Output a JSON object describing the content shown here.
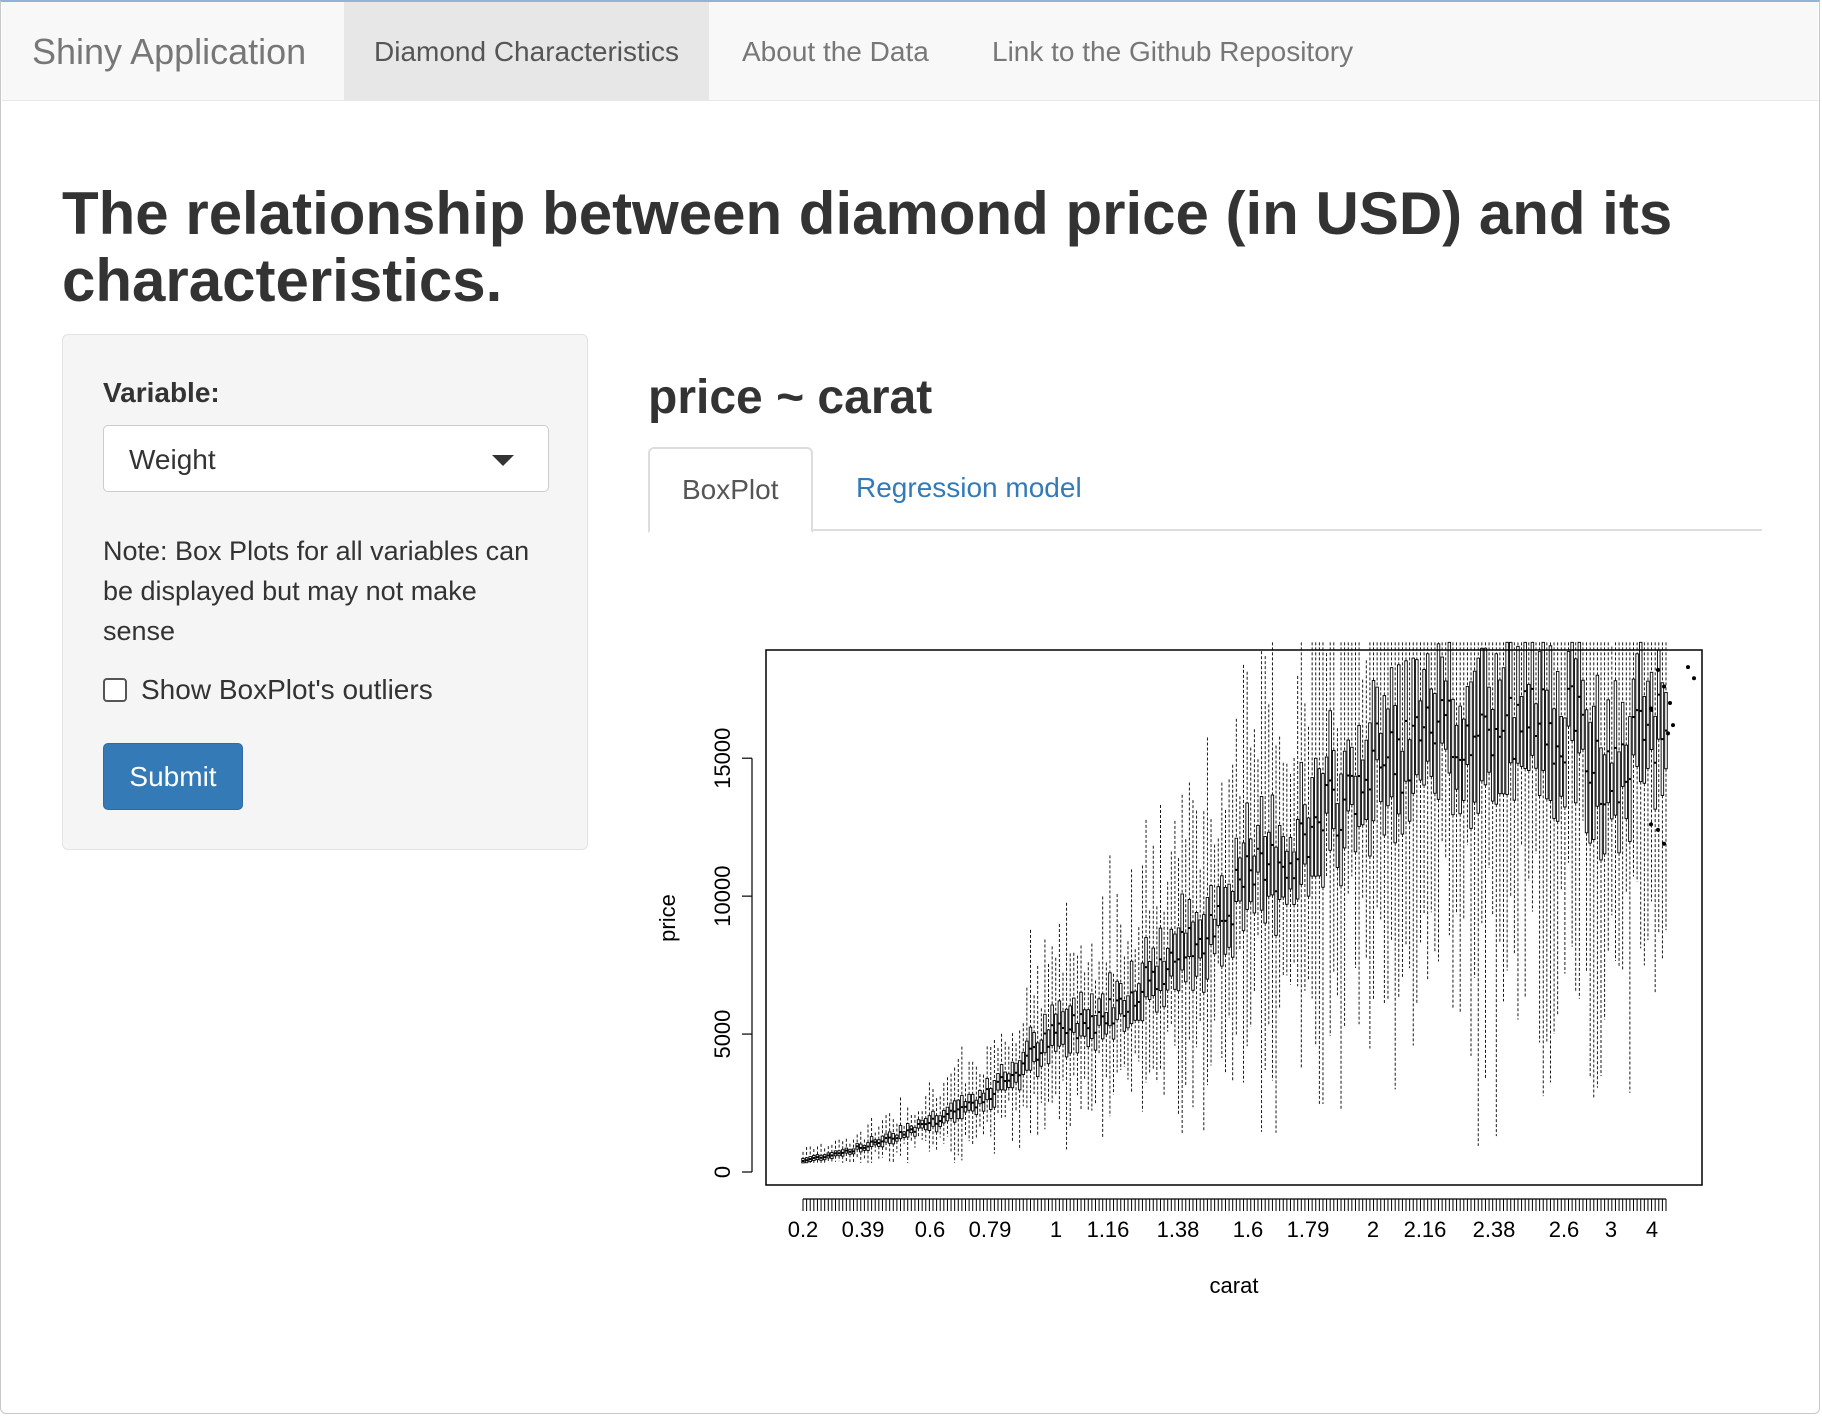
{
  "navbar": {
    "brand": "Shiny Application",
    "items": [
      {
        "label": "Diamond Characteristics",
        "active": true
      },
      {
        "label": "About the Data",
        "active": false
      },
      {
        "label": "Link to the Github Repository",
        "active": false
      }
    ]
  },
  "page": {
    "title": "The relationship between diamond price (in USD) and its characteristics."
  },
  "sidebar": {
    "variable_label": "Variable:",
    "variable_value": "Weight",
    "note": "Note: Box Plots for all variables can be displayed but may not make sense",
    "checkbox_label": "Show BoxPlot's outliers",
    "checkbox_checked": false,
    "submit_label": "Submit"
  },
  "main": {
    "heading": "price ~ carat",
    "tabs": [
      {
        "label": "BoxPlot",
        "active": true
      },
      {
        "label": "Regression model",
        "active": false
      }
    ]
  },
  "colors": {
    "primary": "#337ab7",
    "navbar_bg": "#f8f8f8",
    "active_nav_bg": "#e7e7e7"
  },
  "chart_data": {
    "type": "boxplot",
    "xlabel": "carat",
    "ylabel": "price",
    "ylim": [
      0,
      19500
    ],
    "y_ticks": [
      0,
      5000,
      10000,
      15000
    ],
    "x_tick_labels": [
      "0.2",
      "0.39",
      "0.6",
      "0.79",
      "1",
      "1.16",
      "1.38",
      "1.6",
      "1.79",
      "2",
      "2.16",
      "2.38",
      "2.6",
      "3",
      "4"
    ],
    "grid": false,
    "legend": "none",
    "box_count": 240,
    "median_trend": [
      {
        "carat": 0.2,
        "price": 400
      },
      {
        "carat": 0.39,
        "price": 900
      },
      {
        "carat": 0.6,
        "price": 1800
      },
      {
        "carat": 0.79,
        "price": 2800
      },
      {
        "carat": 1,
        "price": 5000
      },
      {
        "carat": 1.16,
        "price": 5800
      },
      {
        "carat": 1.38,
        "price": 7800
      },
      {
        "carat": 1.6,
        "price": 10500
      },
      {
        "carat": 1.79,
        "price": 12000
      },
      {
        "carat": 2,
        "price": 14800
      },
      {
        "carat": 2.16,
        "price": 15500
      },
      {
        "carat": 2.38,
        "price": 16000
      },
      {
        "carat": 2.6,
        "price": 16500
      },
      {
        "carat": 3,
        "price": 14000
      },
      {
        "carat": 4,
        "price": 16000
      }
    ]
  }
}
